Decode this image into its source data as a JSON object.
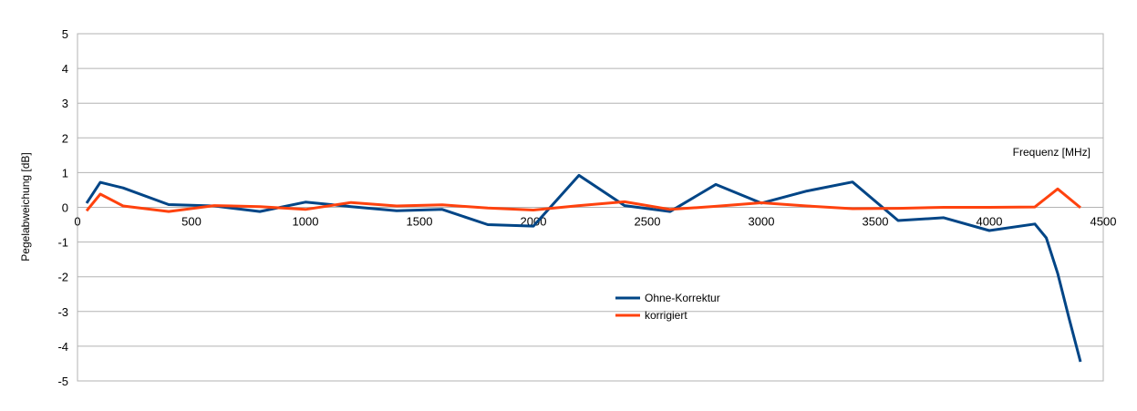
{
  "chart_data": {
    "type": "line",
    "title": "",
    "xlabel": "Frequenz [MHz]",
    "ylabel": "Pegelabweichung [dB]",
    "xlim": [
      0,
      4500
    ],
    "ylim": [
      -5,
      5
    ],
    "x_ticks": [
      0,
      500,
      1000,
      1500,
      2000,
      2500,
      3000,
      3500,
      4000,
      4500
    ],
    "y_ticks": [
      5,
      4,
      3,
      2,
      1,
      0,
      -1,
      -2,
      -3,
      -4,
      -5
    ],
    "x_tick_labels": [
      "0",
      "500",
      "1000",
      "1500",
      "2000",
      "2500",
      "3000",
      "3500",
      "4000",
      "4500"
    ],
    "y_tick_labels": [
      "5",
      "4",
      "3",
      "2",
      "1",
      "0",
      "-1",
      "-2",
      "-3",
      "-4",
      "-5"
    ],
    "grid": "horizontal",
    "legend_position": "bottom-center",
    "series": [
      {
        "name": "Ohne-Korrektur",
        "color": "#004586",
        "x": [
          40,
          100,
          200,
          400,
          600,
          800,
          1000,
          1200,
          1400,
          1600,
          1800,
          2000,
          2200,
          2400,
          2600,
          2800,
          3000,
          3200,
          3400,
          3600,
          3800,
          4000,
          4200,
          4250,
          4300,
          4350,
          4400
        ],
        "y": [
          0.12,
          0.72,
          0.56,
          0.08,
          0.04,
          -0.12,
          0.15,
          0.02,
          -0.1,
          -0.06,
          -0.5,
          -0.54,
          0.92,
          0.05,
          -0.12,
          0.66,
          0.12,
          0.47,
          0.73,
          -0.38,
          -0.3,
          -0.67,
          -0.48,
          -0.88,
          -1.9,
          -3.2,
          -4.45
        ]
      },
      {
        "name": "korrigiert",
        "color": "#ff420e",
        "x": [
          40,
          100,
          200,
          400,
          600,
          800,
          1000,
          1200,
          1400,
          1600,
          1800,
          2000,
          2200,
          2400,
          2600,
          2800,
          3000,
          3200,
          3400,
          3600,
          3800,
          4000,
          4200,
          4300,
          4400
        ],
        "y": [
          -0.1,
          0.38,
          0.04,
          -0.12,
          0.05,
          0.02,
          -0.06,
          0.14,
          0.04,
          0.07,
          -0.02,
          -0.08,
          0.05,
          0.16,
          -0.06,
          0.03,
          0.13,
          0.04,
          -0.04,
          -0.03,
          0.0,
          0.0,
          0.01,
          0.53,
          -0.01
        ]
      }
    ]
  }
}
